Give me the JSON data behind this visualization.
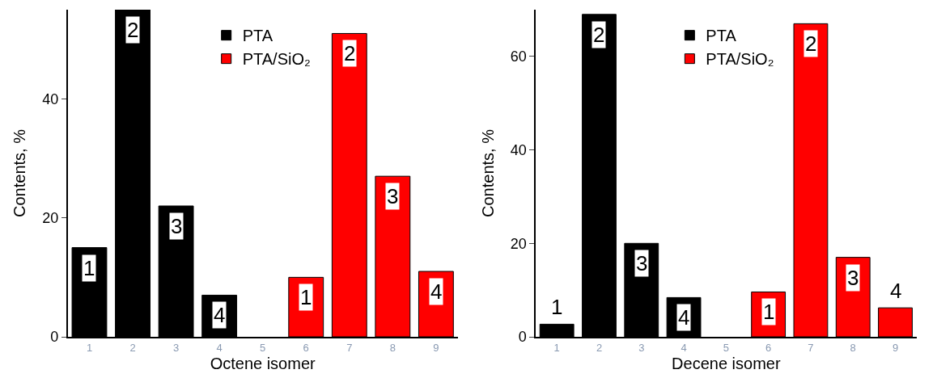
{
  "chart_data": [
    {
      "type": "bar",
      "xlabel": "Octene isomer",
      "ylabel": "Contents, %",
      "xlim": [
        0.5,
        9.5
      ],
      "xticks": [
        1,
        2,
        3,
        4,
        5,
        6,
        7,
        8,
        9
      ],
      "ylim": [
        0,
        55
      ],
      "yticks": [
        0,
        20,
        40
      ],
      "legend": "top",
      "series": [
        {
          "name": "PTA",
          "color": "#000000",
          "x": [
            1,
            2,
            3,
            4
          ],
          "values": [
            15,
            55,
            22,
            7
          ]
        },
        {
          "name": "PTA/SiO₂",
          "color": "#ff0000",
          "x": [
            6,
            7,
            8,
            9
          ],
          "values": [
            10,
            51,
            27,
            11
          ]
        }
      ],
      "annotations": [
        {
          "text": "1",
          "x": 1,
          "y": 15
        },
        {
          "text": "2",
          "x": 2,
          "y": 55
        },
        {
          "text": "3",
          "x": 3,
          "y": 22
        },
        {
          "text": "4",
          "x": 4,
          "y": 7
        },
        {
          "text": "1",
          "x": 6,
          "y": 10
        },
        {
          "text": "2",
          "x": 7,
          "y": 51
        },
        {
          "text": "3",
          "x": 8,
          "y": 27
        },
        {
          "text": "4",
          "x": 9,
          "y": 11
        }
      ]
    },
    {
      "type": "bar",
      "xlabel": "Decene isomer",
      "ylabel": "Contents, %",
      "xlim": [
        0.5,
        9.5
      ],
      "xticks": [
        1,
        2,
        3,
        4,
        5,
        6,
        7,
        8,
        9
      ],
      "ylim": [
        0,
        70
      ],
      "yticks": [
        0,
        20,
        40,
        60
      ],
      "legend": "top",
      "series": [
        {
          "name": "PTA",
          "color": "#000000",
          "x": [
            1,
            2,
            3,
            4
          ],
          "values": [
            2.7,
            69,
            20,
            8.4
          ]
        },
        {
          "name": "PTA/SiO₂",
          "color": "#ff0000",
          "x": [
            6,
            7,
            8,
            9
          ],
          "values": [
            9.6,
            67,
            17,
            6.2
          ]
        }
      ],
      "annotations": [
        {
          "text": "1",
          "x": 1,
          "y": 2.7
        },
        {
          "text": "2",
          "x": 2,
          "y": 69
        },
        {
          "text": "3",
          "x": 3,
          "y": 20
        },
        {
          "text": "4",
          "x": 4,
          "y": 8.4
        },
        {
          "text": "1",
          "x": 6,
          "y": 9.6
        },
        {
          "text": "2",
          "x": 7,
          "y": 67
        },
        {
          "text": "3",
          "x": 8,
          "y": 17
        },
        {
          "text": "4",
          "x": 9,
          "y": 6.2
        }
      ]
    }
  ]
}
